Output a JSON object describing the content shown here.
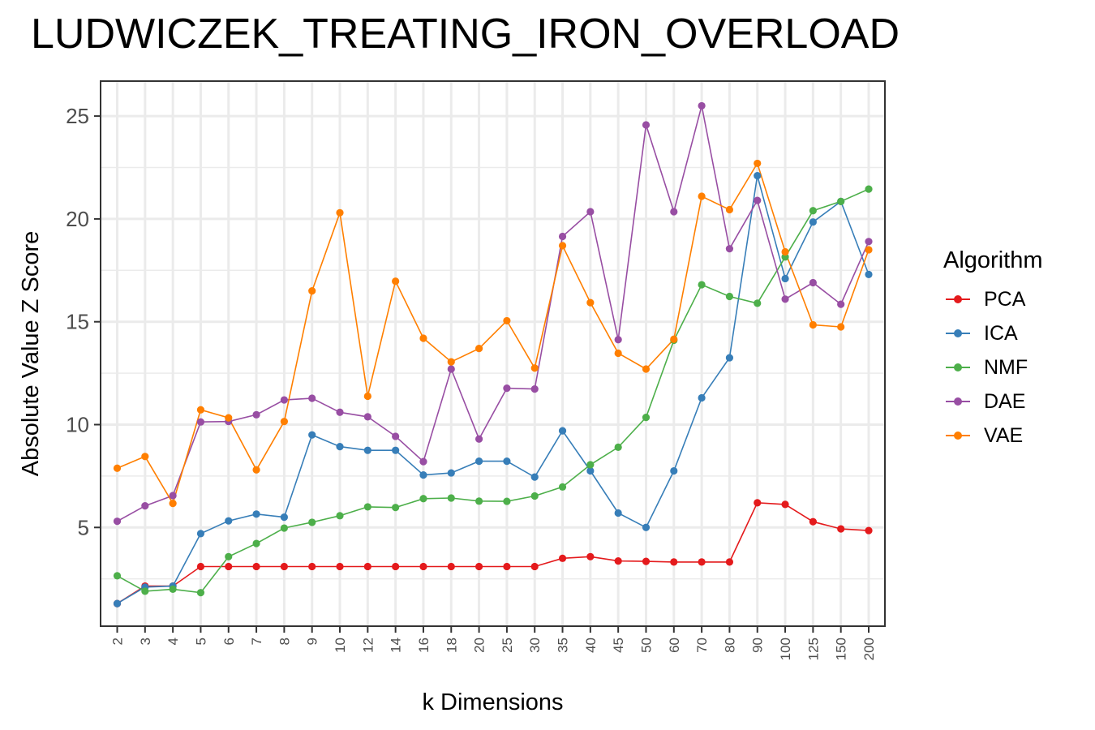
{
  "chart_data": {
    "type": "line",
    "title": "LUDWICZEK_TREATING_IRON_OVERLOAD",
    "xlabel": "k Dimensions",
    "ylabel": "Absolute Value Z Score",
    "categories": [
      "2",
      "3",
      "4",
      "5",
      "6",
      "7",
      "8",
      "9",
      "10",
      "12",
      "14",
      "16",
      "18",
      "20",
      "25",
      "30",
      "35",
      "40",
      "45",
      "50",
      "60",
      "70",
      "80",
      "90",
      "100",
      "125",
      "150",
      "200"
    ],
    "ylim": [
      0.2,
      26.7
    ],
    "yticks": [
      5,
      10,
      15,
      20,
      25
    ],
    "grid": true,
    "legend_title": "Algorithm",
    "legend_position": "right",
    "series": [
      {
        "name": "PCA",
        "color": "#e41a1c",
        "values": [
          1.3,
          2.15,
          2.15,
          3.1,
          3.1,
          3.1,
          3.1,
          3.1,
          3.1,
          3.1,
          3.1,
          3.1,
          3.1,
          3.1,
          3.1,
          3.1,
          3.5,
          3.58,
          3.37,
          3.35,
          3.32,
          3.32,
          3.32,
          6.2,
          6.12,
          5.28,
          4.93,
          4.85
        ]
      },
      {
        "name": "ICA",
        "color": "#377eb8",
        "values": [
          1.3,
          2.1,
          2.15,
          4.7,
          5.32,
          5.65,
          5.5,
          9.5,
          8.93,
          8.75,
          8.75,
          7.55,
          7.65,
          8.22,
          8.22,
          7.45,
          9.7,
          7.75,
          5.7,
          5.0,
          7.75,
          11.3,
          13.25,
          22.1,
          17.1,
          19.85,
          20.85,
          17.3
        ]
      },
      {
        "name": "NMF",
        "color": "#4daf4a",
        "values": [
          2.65,
          1.9,
          2.0,
          1.83,
          3.58,
          4.22,
          4.97,
          5.25,
          5.57,
          6.0,
          5.97,
          6.4,
          6.43,
          6.28,
          6.27,
          6.53,
          6.97,
          8.05,
          8.9,
          10.35,
          14.1,
          16.8,
          16.23,
          15.9,
          18.15,
          20.4,
          20.85,
          21.45
        ]
      },
      {
        "name": "DAE",
        "color": "#984ea3",
        "values": [
          5.3,
          6.05,
          6.55,
          10.13,
          10.15,
          10.48,
          11.2,
          11.28,
          10.6,
          10.38,
          9.43,
          8.2,
          12.7,
          9.3,
          11.77,
          11.73,
          19.15,
          20.35,
          14.13,
          24.57,
          20.35,
          25.5,
          18.55,
          20.9,
          16.1,
          16.9,
          15.85,
          18.9
        ]
      },
      {
        "name": "VAE",
        "color": "#ff7f00",
        "values": [
          7.88,
          8.45,
          6.17,
          10.72,
          10.33,
          7.8,
          10.15,
          16.5,
          20.3,
          11.38,
          16.97,
          14.2,
          13.05,
          13.7,
          15.05,
          12.75,
          18.7,
          15.93,
          13.47,
          12.7,
          14.15,
          21.1,
          20.45,
          22.7,
          18.4,
          14.85,
          14.75,
          18.5
        ]
      }
    ]
  }
}
